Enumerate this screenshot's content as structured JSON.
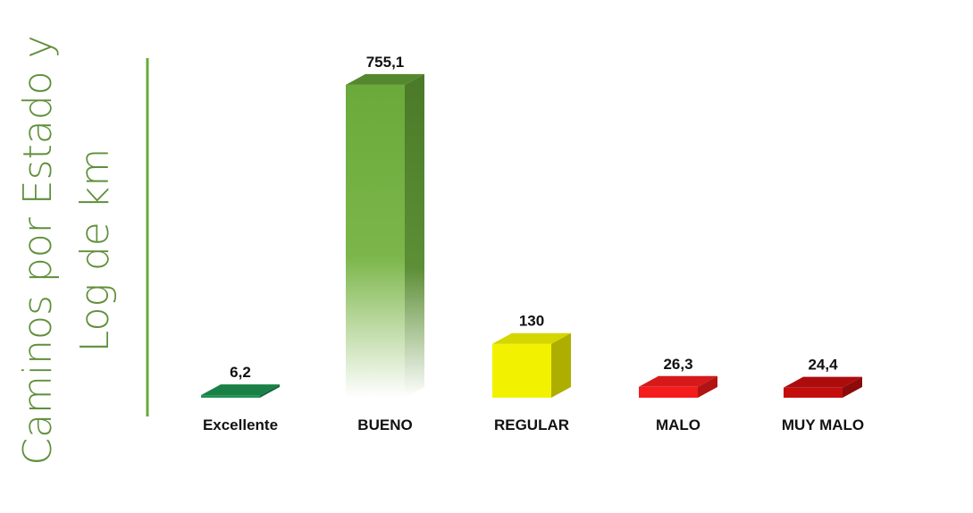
{
  "chart_data": {
    "type": "bar3d",
    "title": "Caminos por Estado y Log de km",
    "categories": [
      "Excellente",
      "BUENO",
      "REGULAR",
      "MALO",
      "MUY MALO"
    ],
    "values": [
      6.2,
      755.1,
      130,
      26.3,
      24.4
    ],
    "value_labels": [
      "6,2",
      "755,1",
      "130",
      "26,3",
      "24,4"
    ],
    "colors": [
      "#1e9150",
      "#6aaa3a",
      "#f2f200",
      "#f41c1c",
      "#c40e0e"
    ],
    "ylim": [
      0,
      800
    ]
  }
}
